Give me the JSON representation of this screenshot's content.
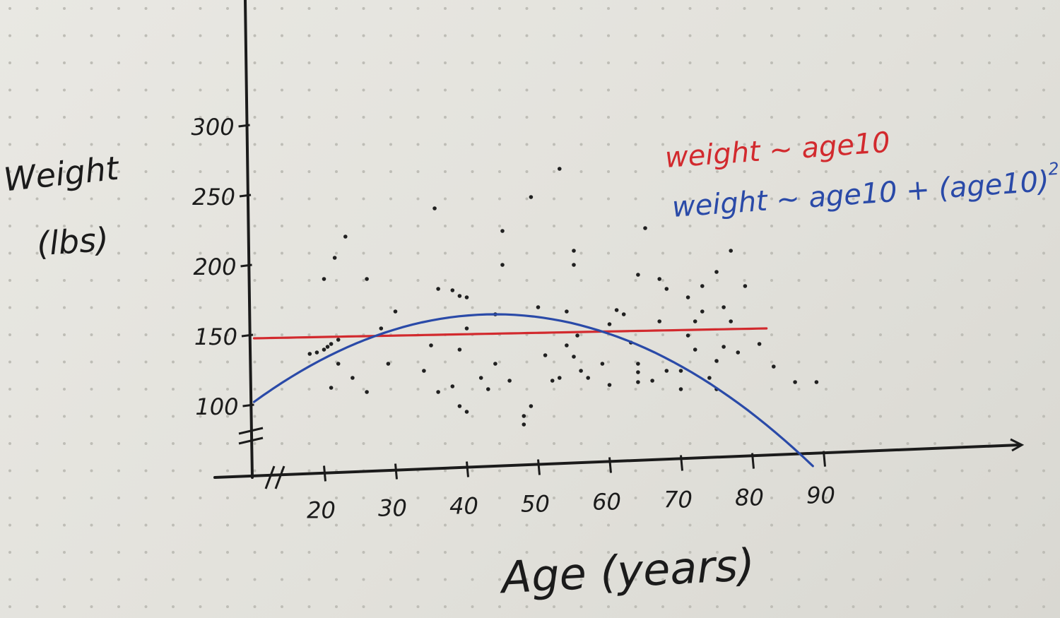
{
  "chart_data": {
    "type": "scatter",
    "title": "",
    "xlabel": "Age (years)",
    "ylabel": "Weight (lbs)",
    "ylabel_lines": [
      "Weight",
      "(lbs)"
    ],
    "xlim": [
      10,
      92
    ],
    "ylim": [
      100,
      300
    ],
    "axis_breaks": [
      "x",
      "y"
    ],
    "grid": false,
    "x_ticks": [
      {
        "value": 20,
        "label": "20"
      },
      {
        "value": 30,
        "label": "30"
      },
      {
        "value": 40,
        "label": "40"
      },
      {
        "value": 50,
        "label": "50"
      },
      {
        "value": 60,
        "label": "60"
      },
      {
        "value": 70,
        "label": "70"
      },
      {
        "value": 80,
        "label": "80"
      },
      {
        "value": 90,
        "label": "90"
      }
    ],
    "y_ticks": [
      {
        "value": 100,
        "label": "100"
      },
      {
        "value": 150,
        "label": "150"
      },
      {
        "value": 200,
        "label": "200"
      },
      {
        "value": 250,
        "label": "250"
      },
      {
        "value": 300,
        "label": "300"
      }
    ],
    "points": [
      [
        20,
        140
      ],
      [
        20.5,
        142
      ],
      [
        21,
        144
      ],
      [
        19,
        138
      ],
      [
        18,
        137
      ],
      [
        22,
        147
      ],
      [
        21,
        113
      ],
      [
        20,
        190
      ],
      [
        21.5,
        205
      ],
      [
        23,
        220
      ],
      [
        26,
        190
      ],
      [
        24,
        120
      ],
      [
        22,
        130
      ],
      [
        26,
        110
      ],
      [
        28,
        155
      ],
      [
        29,
        130
      ],
      [
        30,
        167
      ],
      [
        34,
        125
      ],
      [
        36,
        110
      ],
      [
        35,
        143
      ],
      [
        35.5,
        240
      ],
      [
        36,
        183
      ],
      [
        38,
        182
      ],
      [
        39,
        178
      ],
      [
        40,
        177
      ],
      [
        38,
        114
      ],
      [
        39,
        100
      ],
      [
        40,
        96
      ],
      [
        40,
        155
      ],
      [
        39,
        140
      ],
      [
        42,
        120
      ],
      [
        44,
        165
      ],
      [
        44,
        130
      ],
      [
        43,
        112
      ],
      [
        45,
        224
      ],
      [
        45,
        200
      ],
      [
        46,
        118
      ],
      [
        48,
        93
      ],
      [
        48,
        87
      ],
      [
        49,
        100
      ],
      [
        49,
        248
      ],
      [
        50,
        170
      ],
      [
        51,
        136
      ],
      [
        52,
        118
      ],
      [
        53,
        120
      ],
      [
        53,
        268
      ],
      [
        54,
        167
      ],
      [
        54,
        143
      ],
      [
        55,
        210
      ],
      [
        55,
        200
      ],
      [
        55,
        135
      ],
      [
        55.5,
        150
      ],
      [
        56,
        125
      ],
      [
        57,
        120
      ],
      [
        59,
        130
      ],
      [
        60,
        115
      ],
      [
        60,
        158
      ],
      [
        61,
        168
      ],
      [
        62,
        165
      ],
      [
        63,
        145
      ],
      [
        64,
        124
      ],
      [
        64,
        130
      ],
      [
        64,
        193
      ],
      [
        64,
        117
      ],
      [
        65,
        226
      ],
      [
        66,
        118
      ],
      [
        67,
        160
      ],
      [
        67,
        190
      ],
      [
        68,
        183
      ],
      [
        68,
        125
      ],
      [
        70,
        125
      ],
      [
        71,
        177
      ],
      [
        70,
        112
      ],
      [
        71,
        150
      ],
      [
        72,
        140
      ],
      [
        72,
        160
      ],
      [
        73,
        185
      ],
      [
        73,
        167
      ],
      [
        74,
        120
      ],
      [
        75,
        195
      ],
      [
        75,
        132
      ],
      [
        75,
        112
      ],
      [
        76,
        170
      ],
      [
        76,
        142
      ],
      [
        77,
        210
      ],
      [
        77,
        160
      ],
      [
        78,
        138
      ],
      [
        79,
        185
      ],
      [
        81,
        144
      ],
      [
        83,
        128
      ],
      [
        86,
        117
      ],
      [
        89,
        117
      ]
    ],
    "series": [
      {
        "name": "weight ~ age10",
        "color": "#d22a2e",
        "kind": "linear",
        "x_range": [
          10.2,
          82
        ],
        "y": [
          148,
          155
        ]
      },
      {
        "name": "weight ~ age10 + (age10)²",
        "color": "#2a4aa8",
        "kind": "quadratic",
        "x_range": [
          10.2,
          88.5
        ],
        "vertex": [
          44,
          165
        ],
        "y_at_start": 103
      }
    ],
    "legend": {
      "placement": "top-right",
      "entries": [
        {
          "label": "weight ~ age10",
          "color": "#d22a2e"
        },
        {
          "label": "weight ~ age10 + (age10)",
          "superscript": "2",
          "color": "#2a4aa8"
        }
      ]
    }
  }
}
